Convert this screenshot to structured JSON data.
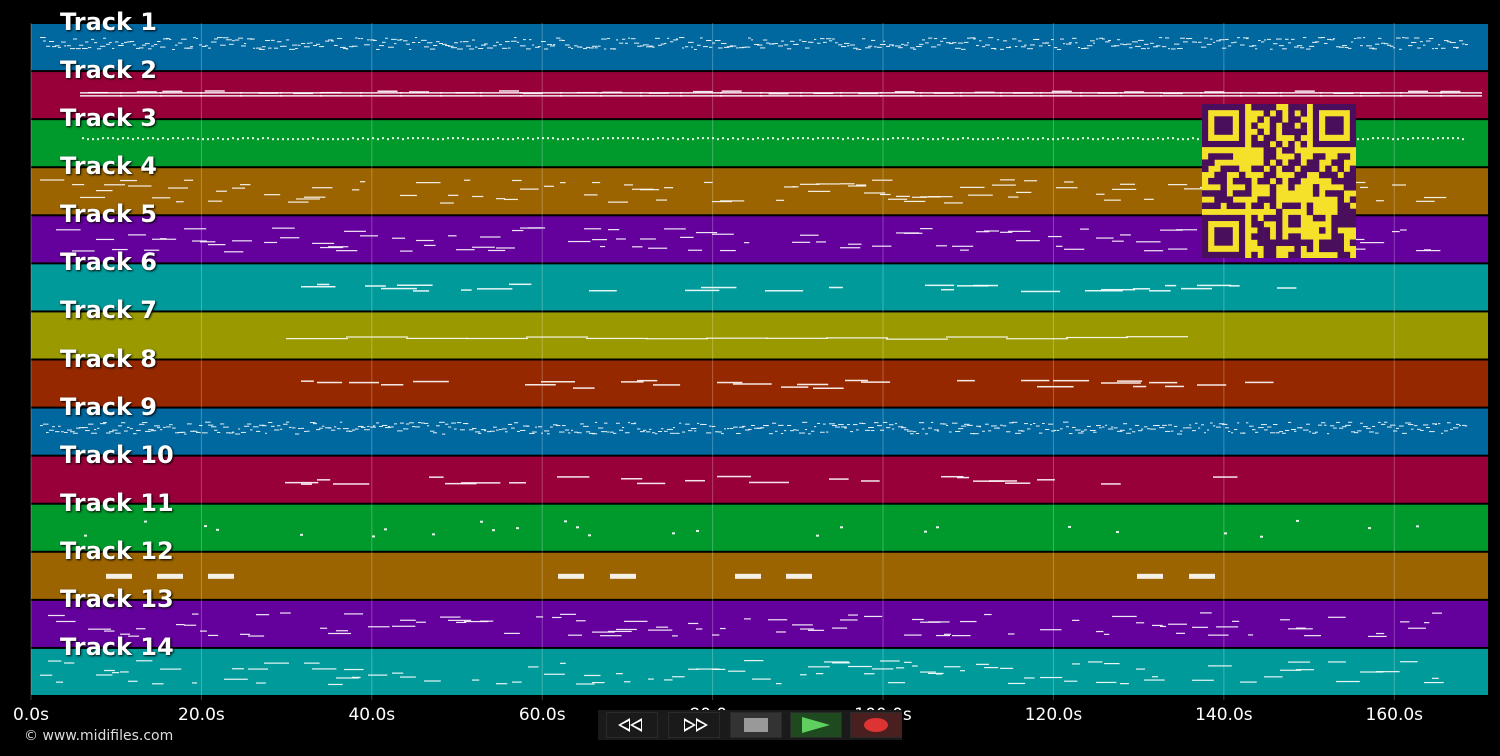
{
  "timeline": {
    "ticks": [
      "0.0s",
      "20.0s",
      "40.0s",
      "60.0s",
      "80.0s",
      "100.0s",
      "120.0s",
      "140.0s",
      "160.0s"
    ],
    "tick_seconds": [
      0,
      20,
      40,
      60,
      80,
      100,
      120,
      140,
      160
    ],
    "duration_seconds": 171
  },
  "tracks": [
    {
      "label": "Track 1",
      "color": "#00689f",
      "style": "dense"
    },
    {
      "label": "Track 2",
      "color": "#98003a",
      "style": "sustain"
    },
    {
      "label": "Track 3",
      "color": "#00992b",
      "style": "dotted"
    },
    {
      "label": "Track 4",
      "color": "#9b6400",
      "style": "phrases"
    },
    {
      "label": "Track 5",
      "color": "#64009b",
      "style": "phrases"
    },
    {
      "label": "Track 6",
      "color": "#009a9a",
      "style": "sparse"
    },
    {
      "label": "Track 7",
      "color": "#9a9a00",
      "style": "long"
    },
    {
      "label": "Track 8",
      "color": "#962800",
      "style": "sparse"
    },
    {
      "label": "Track 9",
      "color": "#00689f",
      "style": "dense"
    },
    {
      "label": "Track 10",
      "color": "#98003a",
      "style": "sparse"
    },
    {
      "label": "Track 11",
      "color": "#00992b",
      "style": "dots"
    },
    {
      "label": "Track 12",
      "color": "#9b6400",
      "style": "blocks"
    },
    {
      "label": "Track 13",
      "color": "#64009b",
      "style": "phrases"
    },
    {
      "label": "Track 14",
      "color": "#009a9a",
      "style": "phrases"
    }
  ],
  "copyright": "© www.midifiles.com",
  "controls": {
    "rewind": "rewind-icon",
    "fast_forward": "fast-forward-icon",
    "stop": "stop-icon",
    "play": "play-icon",
    "record": "record-icon"
  },
  "qr_colors": {
    "light": "#f5e12a",
    "dark": "#4a0f5c"
  }
}
